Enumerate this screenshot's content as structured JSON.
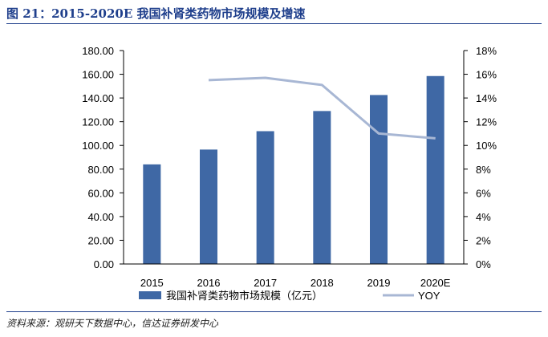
{
  "figure": {
    "title": "图 21：2015-2020E 我国补肾类药物市场规模及增速",
    "source": "资料来源：观研天下数据中心，信达证券研发中心"
  },
  "chart_data": {
    "type": "bar",
    "categories": [
      "2015",
      "2016",
      "2017",
      "2018",
      "2019",
      "2020E"
    ],
    "series": [
      {
        "name": "我国补肾类药物市场规模（亿元）",
        "type": "bar",
        "axis": "left",
        "values": [
          84,
          96.5,
          112,
          129,
          142.5,
          158.5
        ],
        "color": "#3f68a5"
      },
      {
        "name": "YOY",
        "type": "line",
        "axis": "right",
        "values": [
          null,
          15.5,
          15.7,
          15.1,
          11.0,
          10.6
        ],
        "color": "#a8b7d4"
      }
    ],
    "y_left": {
      "min": 0,
      "max": 180,
      "step": 20,
      "ticks": [
        "0.00",
        "20.00",
        "40.00",
        "60.00",
        "80.00",
        "100.00",
        "120.00",
        "140.00",
        "160.00",
        "180.00"
      ]
    },
    "y_right": {
      "min": 0,
      "max": 18,
      "step": 2,
      "ticks": [
        "0%",
        "2%",
        "4%",
        "6%",
        "8%",
        "10%",
        "12%",
        "14%",
        "16%",
        "18%"
      ]
    },
    "legend_position": "bottom",
    "grid": false
  }
}
